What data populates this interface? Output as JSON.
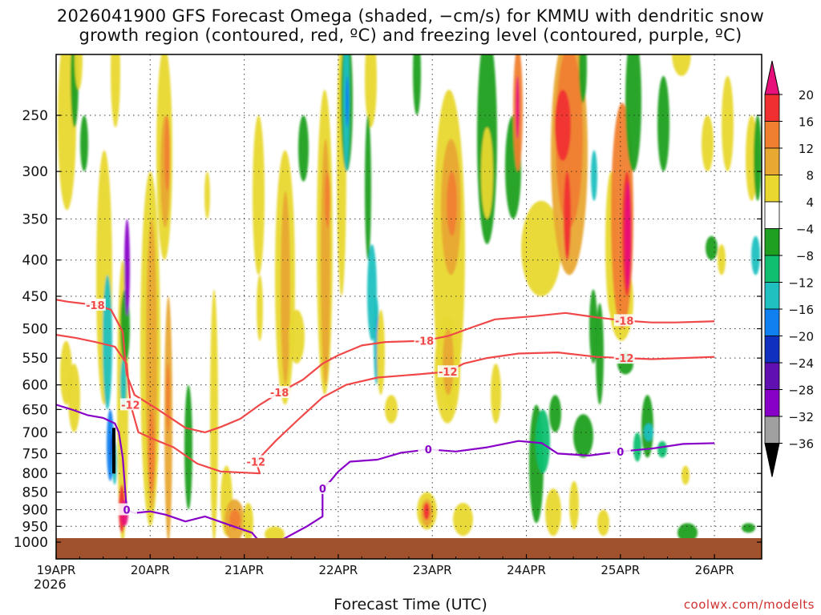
{
  "title": {
    "line1": "2026041900 GFS Forecast Omega (shaded, −cm/s) for KMMU with dendritic snow",
    "line2": "growth region (contoured, red, ºC) and freezing level (contoured, purple, ºC)"
  },
  "xlabel": "Forecast Time (UTC)",
  "credit": "coolwx.com/modelts",
  "year_label": "2026",
  "chart_data": {
    "type": "heatmap",
    "title": "2026041900 GFS Forecast Omega for KMMU",
    "x_ticks": [
      "19APR",
      "20APR",
      "21APR",
      "22APR",
      "23APR",
      "24APR",
      "25APR",
      "26APR"
    ],
    "x_range_hours": [
      0,
      168
    ],
    "y_ticks": [
      250,
      300,
      350,
      400,
      450,
      500,
      550,
      600,
      650,
      700,
      750,
      800,
      850,
      900,
      950,
      1000
    ],
    "y_range_hpa": [
      190,
      1000
    ],
    "colorbar_levels": [
      20,
      16,
      12,
      8,
      4,
      -4,
      -8,
      -12,
      -16,
      -20,
      -24,
      -28,
      -32,
      -36
    ],
    "colorbar_colors": [
      "#e8107a",
      "#f03030",
      "#f08030",
      "#e8a832",
      "#e8d830",
      "#ffffff",
      "#20a020",
      "#10c070",
      "#20c0c0",
      "#1080f0",
      "#1030c0",
      "#6010b0",
      "#8800c8",
      "#a0a0a0",
      "#000000"
    ],
    "contours": [
      {
        "name": "dgz -18",
        "label": "-18",
        "color": "#f04848",
        "points": [
          [
            0,
            455
          ],
          [
            3,
            458
          ],
          [
            10,
            463
          ],
          [
            14,
            470
          ],
          [
            17,
            505
          ],
          [
            18,
            580
          ],
          [
            20,
            620
          ],
          [
            26,
            650
          ],
          [
            33,
            690
          ],
          [
            38,
            700
          ],
          [
            42,
            688
          ],
          [
            47,
            670
          ],
          [
            52,
            640
          ],
          [
            57,
            615
          ],
          [
            63,
            590
          ],
          [
            68,
            560
          ],
          [
            72,
            545
          ],
          [
            78,
            528
          ],
          [
            84,
            522
          ],
          [
            94,
            520
          ],
          [
            100,
            512
          ],
          [
            106,
            498
          ],
          [
            112,
            485
          ],
          [
            122,
            480
          ],
          [
            130,
            475
          ],
          [
            138,
            482
          ],
          [
            145,
            487
          ],
          [
            152,
            490
          ],
          [
            158,
            490
          ],
          [
            168,
            488
          ]
        ]
      },
      {
        "name": "dgz -12",
        "label": "-12",
        "color": "#f04848",
        "points": [
          [
            0,
            510
          ],
          [
            5,
            515
          ],
          [
            10,
            522
          ],
          [
            15,
            530
          ],
          [
            18,
            560
          ],
          [
            19,
            640
          ],
          [
            21,
            700
          ],
          [
            26,
            720
          ],
          [
            30,
            735
          ],
          [
            36,
            775
          ],
          [
            42,
            795
          ],
          [
            48,
            798
          ],
          [
            52,
            800
          ],
          [
            51,
            770
          ],
          [
            56,
            720
          ],
          [
            62,
            670
          ],
          [
            68,
            625
          ],
          [
            74,
            600
          ],
          [
            82,
            586
          ],
          [
            92,
            580
          ],
          [
            100,
            575
          ],
          [
            104,
            560
          ],
          [
            110,
            550
          ],
          [
            118,
            542
          ],
          [
            128,
            540
          ],
          [
            138,
            548
          ],
          [
            145,
            550
          ],
          [
            152,
            552
          ],
          [
            160,
            550
          ],
          [
            168,
            548
          ]
        ]
      },
      {
        "name": "freezing 0",
        "label": "0",
        "color": "#8800c8",
        "points": [
          [
            0,
            640
          ],
          [
            4,
            650
          ],
          [
            8,
            662
          ],
          [
            12,
            668
          ],
          [
            15,
            680
          ],
          [
            16,
            700
          ],
          [
            17,
            760
          ],
          [
            18,
            900
          ],
          [
            20,
            910
          ],
          [
            24,
            905
          ],
          [
            28,
            915
          ],
          [
            33,
            935
          ],
          [
            38,
            920
          ],
          [
            44,
            945
          ],
          [
            50,
            970
          ],
          [
            52,
            1000
          ],
          [
            58,
            990
          ],
          [
            64,
            950
          ],
          [
            68,
            920
          ],
          [
            68,
            840
          ],
          [
            70,
            820
          ],
          [
            72,
            795
          ],
          [
            75,
            770
          ],
          [
            82,
            765
          ],
          [
            88,
            748
          ],
          [
            95,
            740
          ],
          [
            102,
            745
          ],
          [
            110,
            735
          ],
          [
            118,
            720
          ],
          [
            124,
            725
          ],
          [
            128,
            750
          ],
          [
            136,
            755
          ],
          [
            144,
            745
          ],
          [
            152,
            738
          ],
          [
            160,
            727
          ],
          [
            168,
            725
          ]
        ]
      }
    ]
  }
}
